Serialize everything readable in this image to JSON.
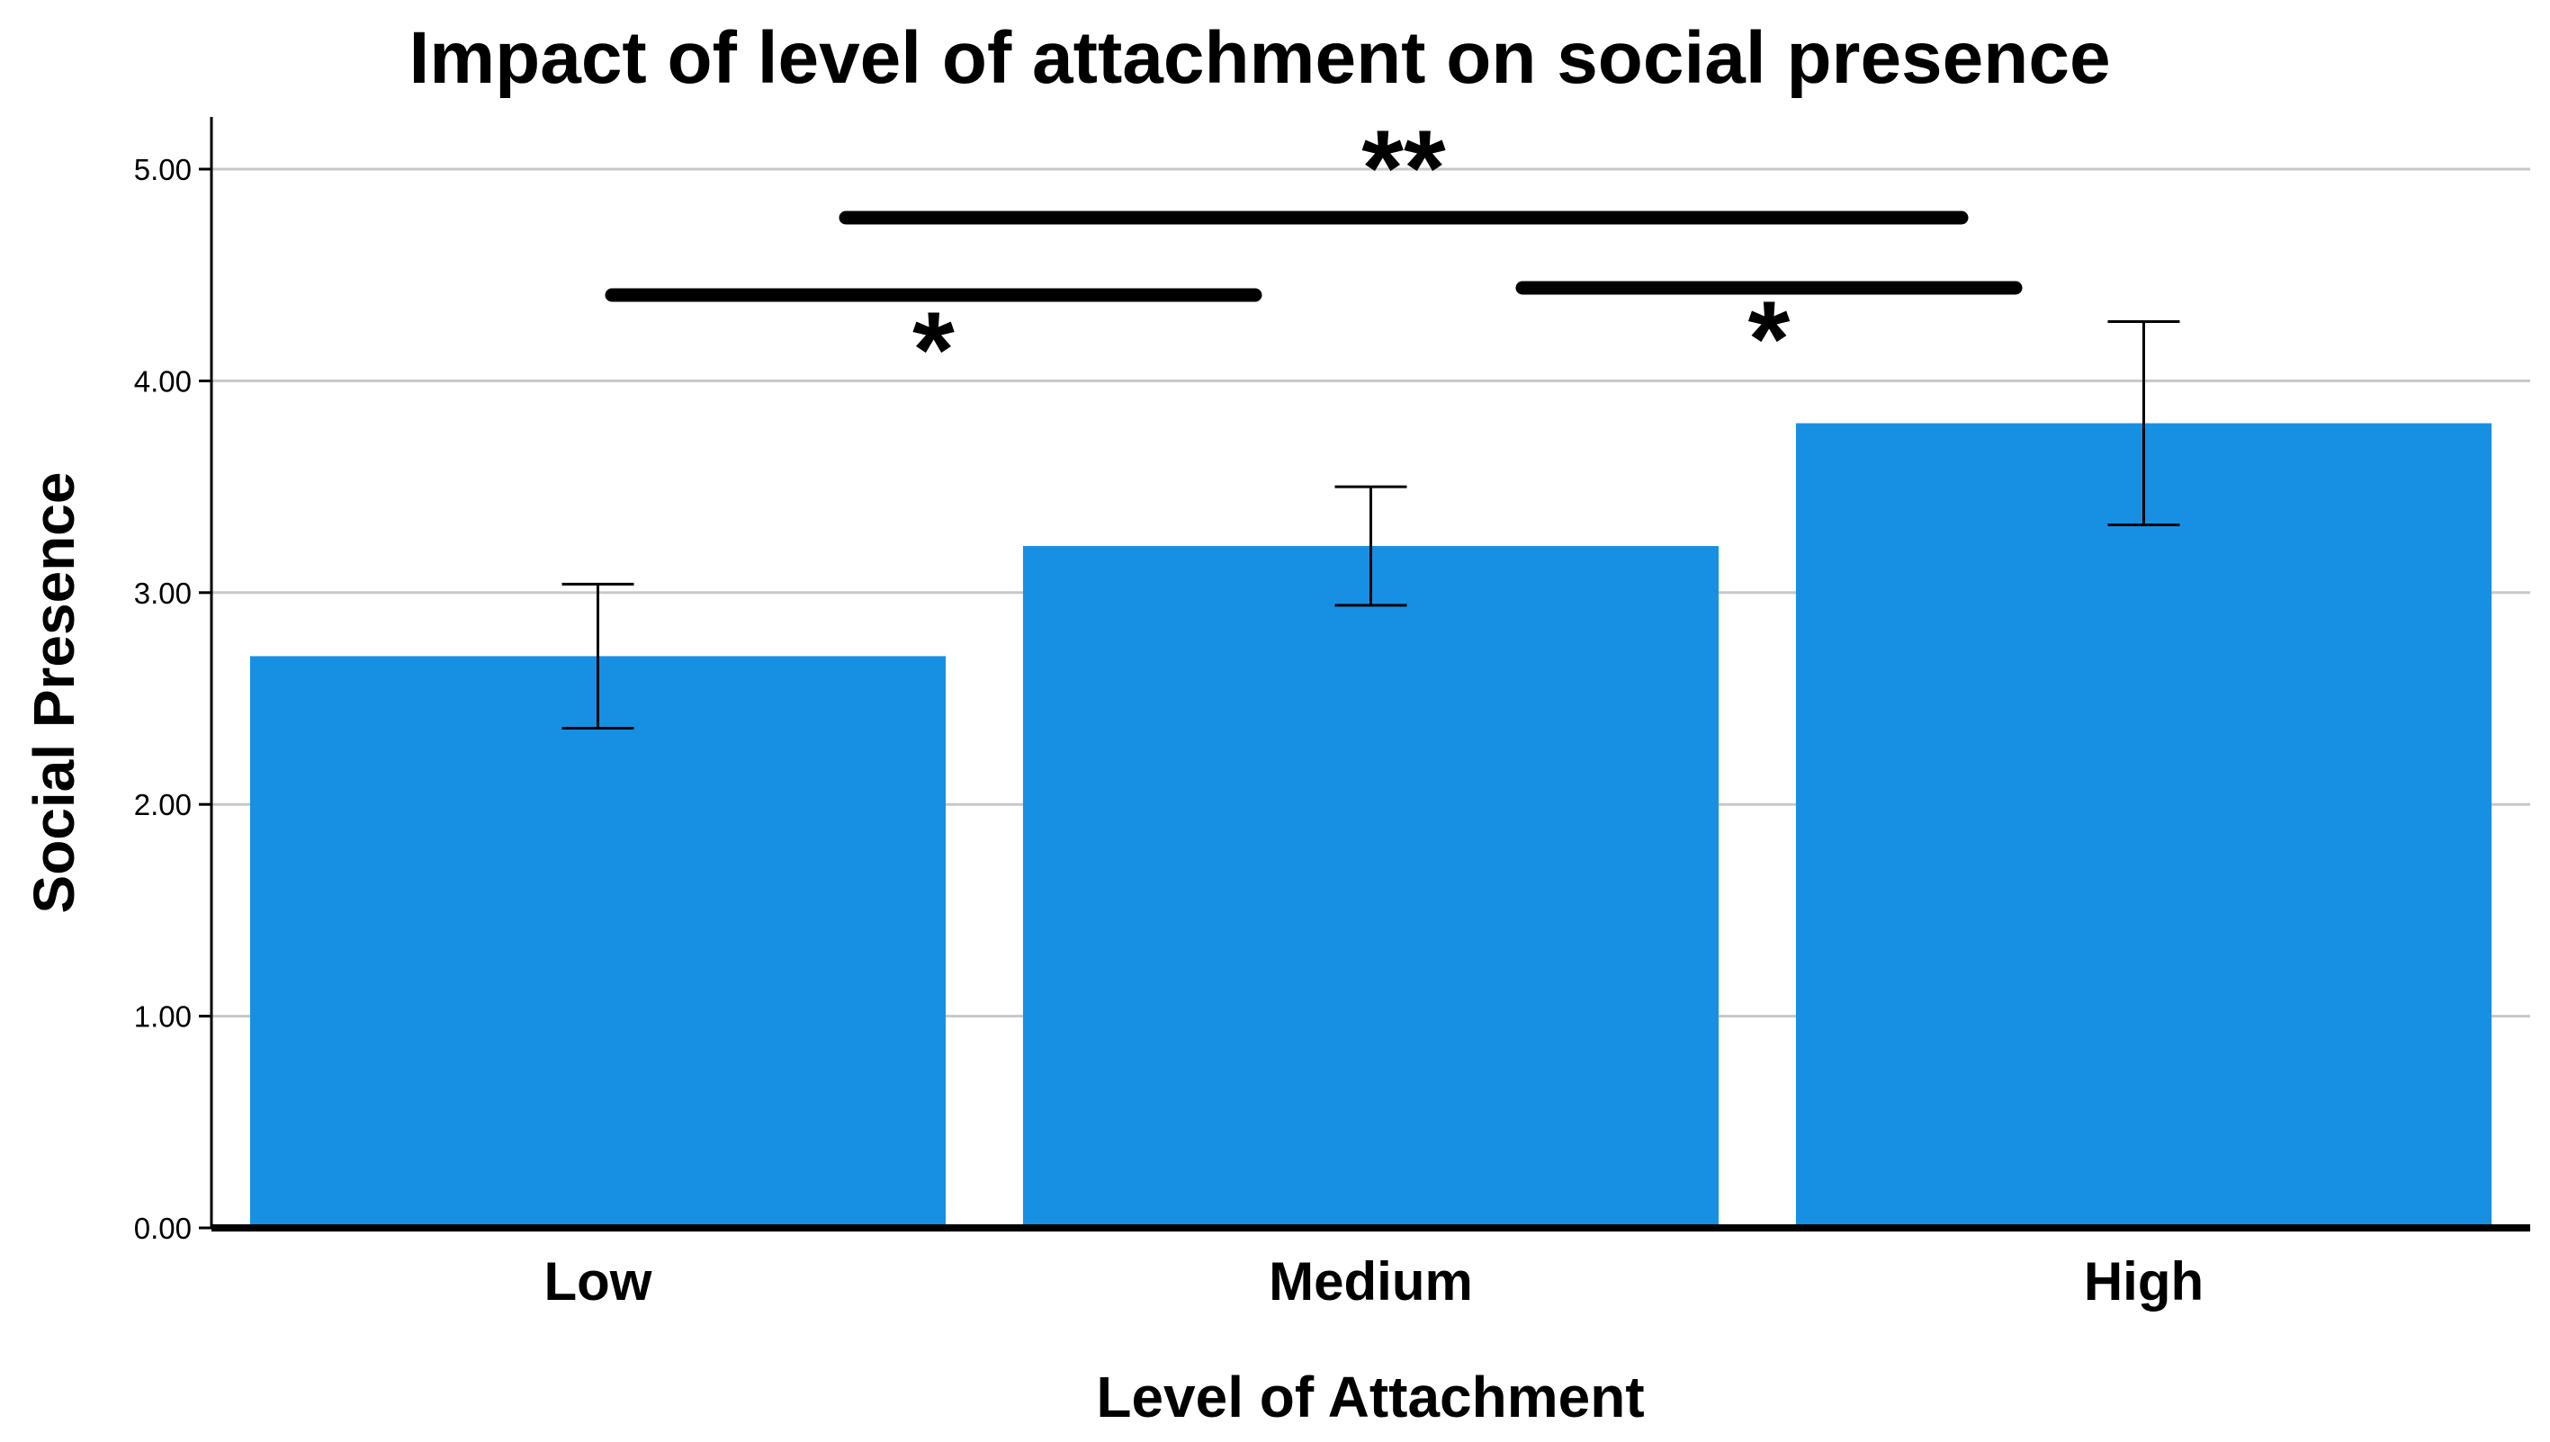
{
  "chart_data": {
    "type": "bar",
    "title": "Impact of level of attachment on social presence",
    "xlabel": "Level of Attachment",
    "ylabel": "Social Presence",
    "categories": [
      "Low",
      "Medium",
      "High"
    ],
    "values": [
      2.7,
      3.22,
      3.8
    ],
    "error_low": [
      2.36,
      2.94,
      3.32
    ],
    "error_high": [
      3.04,
      3.5,
      4.28
    ],
    "ylim": [
      0,
      5.0
    ],
    "yticks": [
      "0.00",
      "1.00",
      "2.00",
      "3.00",
      "4.00",
      "5.00"
    ],
    "grid": true,
    "bar_color": "#1790e3",
    "significance": [
      {
        "from": "Low",
        "to": "Medium",
        "label": "*"
      },
      {
        "from": "Low",
        "to": "High",
        "label": "**"
      },
      {
        "from": "Medium",
        "to": "High",
        "label": "*"
      }
    ]
  }
}
